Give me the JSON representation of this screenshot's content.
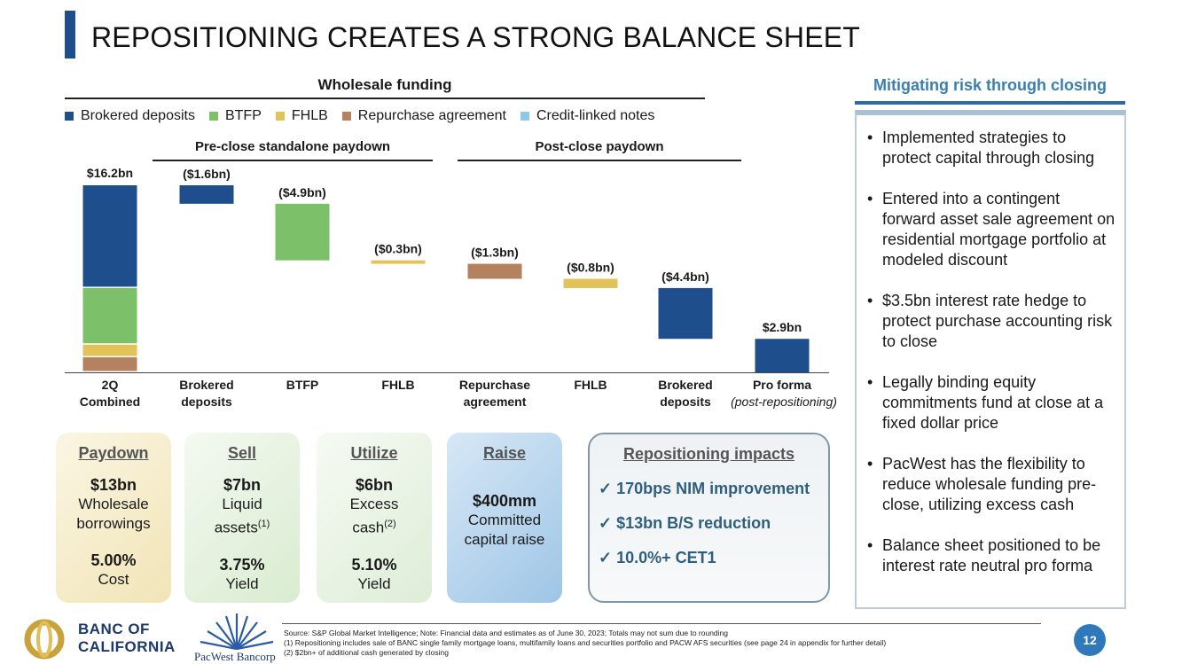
{
  "page_title": "REPOSITIONING CREATES A STRONG BALANCE SHEET",
  "colors": {
    "brokered": "#1f4e8c",
    "btfp": "#7dc06a",
    "fhlb": "#e3c25a",
    "repo": "#b58260",
    "cln": "#8fc9ea",
    "accent": "#2f6aa0"
  },
  "chart_data": {
    "type": "bar",
    "subtype": "waterfall",
    "title": "Wholesale funding",
    "legend": [
      "Brokered deposits",
      "BTFP",
      "FHLB",
      "Repurchase agreement",
      "Credit-linked notes"
    ],
    "legend_placement": "top",
    "groups": [
      {
        "label": "Pre-close standalone paydown",
        "categories": [
          1,
          3
        ]
      },
      {
        "label": "Post-close paydown",
        "categories": [
          4,
          6
        ]
      }
    ],
    "categories": [
      {
        "line1": "2Q",
        "line2": "Combined"
      },
      {
        "line1": "Brokered",
        "line2": "deposits"
      },
      {
        "line1": "BTFP",
        "line2": ""
      },
      {
        "line1": "FHLB",
        "line2": ""
      },
      {
        "line1": "Repurchase",
        "line2": "agreement"
      },
      {
        "line1": "FHLB",
        "line2": ""
      },
      {
        "line1": "Brokered",
        "line2": "deposits"
      },
      {
        "line1": "Pro forma",
        "line2": "(post-repositioning)"
      }
    ],
    "totals_bn": [
      16.2,
      2.9
    ],
    "stack_2q_combined": [
      {
        "series": "Repurchase agreement",
        "value": 1.3
      },
      {
        "series": "FHLB",
        "value": 1.1
      },
      {
        "series": "BTFP",
        "value": 4.9
      },
      {
        "series": "Brokered deposits",
        "value": 8.9
      }
    ],
    "changes": [
      {
        "series": "Brokered deposits",
        "value": -1.6
      },
      {
        "series": "BTFP",
        "value": -4.9
      },
      {
        "series": "FHLB",
        "value": -0.3
      },
      {
        "series": "Repurchase agreement",
        "value": -1.3
      },
      {
        "series": "FHLB",
        "value": -0.8
      },
      {
        "series": "Brokered deposits",
        "value": -4.4
      }
    ],
    "pro_forma": {
      "series": "Brokered deposits",
      "value": 2.9
    },
    "bar_labels": [
      "$16.2bn",
      "($1.6bn)",
      "($4.9bn)",
      "($0.3bn)",
      "($1.3bn)",
      "($0.8bn)",
      "($4.4bn)",
      "$2.9bn"
    ],
    "ylim": [
      0,
      16.2
    ]
  },
  "tiles": [
    {
      "head": "Paydown",
      "big": "$13bn",
      "lines": [
        "Wholesale",
        "borrowings"
      ],
      "sup": "",
      "pct": "5.00%",
      "pct_label": "Cost"
    },
    {
      "head": "Sell",
      "big": "$7bn",
      "lines": [
        "Liquid",
        "assets"
      ],
      "sup": "(1)",
      "pct": "3.75%",
      "pct_label": "Yield"
    },
    {
      "head": "Utilize",
      "big": "$6bn",
      "lines": [
        "Excess",
        "cash"
      ],
      "sup": "(2)",
      "pct": "5.10%",
      "pct_label": "Yield"
    }
  ],
  "raise": {
    "head": "Raise",
    "big": "$400mm",
    "lines": [
      "Committed",
      "capital raise"
    ]
  },
  "impacts": {
    "head": "Repositioning impacts",
    "items": [
      "170bps NIM improvement",
      "$13bn B/S reduction",
      "10.0%+ CET1"
    ]
  },
  "side": {
    "title": "Mitigating risk through closing",
    "bullets": [
      "Implemented strategies to protect capital through closing",
      "Entered into a contingent forward asset sale agreement on residential mortgage portfolio at modeled discount",
      "$3.5bn interest rate hedge to protect purchase accounting risk to close",
      "Legally binding equity commitments fund at close at a fixed dollar price",
      "PacWest has the flexibility to reduce wholesale funding pre-close, utilizing excess cash",
      "Balance sheet positioned to be interest rate neutral pro forma"
    ]
  },
  "footer": {
    "source": "Source: S&P Global Market Intelligence; Note: Financial data and estimates as of June 30, 2023; Totals may not sum due to rounding",
    "note1": "(1) Repositioning includes sale of BANC single family mortgage loans, multifamily loans and securities portfolio and PACW AFS securities (see page 24 in appendix for further detail)",
    "note2": "(2) $2bn+ of additional cash generated by closing"
  },
  "logos": {
    "banc_line1": "BANC OF",
    "banc_line2": "CALIFORNIA",
    "pacwest": "PacWest Bancorp"
  },
  "page_number": "12"
}
